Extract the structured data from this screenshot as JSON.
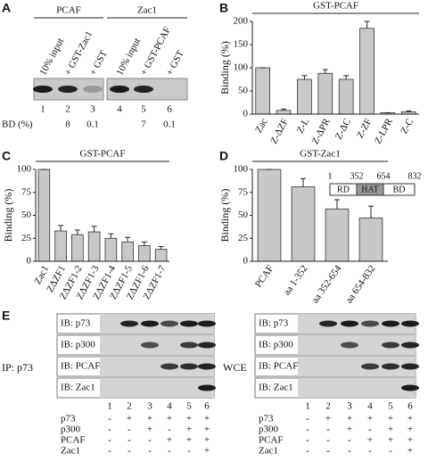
{
  "panel_labels": [
    "A",
    "B",
    "C",
    "D",
    "E"
  ],
  "panel_a": {
    "headers": [
      "PCAF",
      "Zac1"
    ],
    "lanes": [
      "10% input",
      "+ GST-Zac1",
      "+ GST",
      "10% input",
      "+ GST-PCAF",
      "+ GST"
    ],
    "lane_numbers": [
      "1",
      "2",
      "3",
      "4",
      "5",
      "6"
    ],
    "bd_label": "BD (%)",
    "bd_values": [
      "8",
      "0.1",
      "7",
      "0.1"
    ]
  },
  "chart_data": [
    {
      "type": "bar",
      "title": "GST-PCAF",
      "ylabel": "Binding (%)",
      "categories": [
        "Zac",
        "Z-ΔZF",
        "Z-L",
        "Z-ΔPR",
        "Z-ΔC",
        "Z-ZF",
        "Z-LPR",
        "Z-C"
      ],
      "values": [
        100,
        8,
        75,
        88,
        75,
        185,
        3,
        5
      ],
      "errors": [
        0,
        3,
        8,
        8,
        8,
        15,
        0,
        2
      ],
      "ylim": [
        0,
        200
      ],
      "yticks": [
        0,
        50,
        100,
        150,
        200
      ],
      "color": "#c8c8c8"
    },
    {
      "type": "bar",
      "title": "GST-PCAF",
      "ylabel": "Binding (%)",
      "categories": [
        "Zac1",
        "ZΔZF1",
        "ZΔZF1-2",
        "ZΔZF1-3",
        "ZΔZF1-4",
        "ZΔZF1-5",
        "ZΔZF1-6",
        "ZΔZF1-7"
      ],
      "values": [
        100,
        33,
        29,
        32,
        25,
        21,
        17,
        13
      ],
      "errors": [
        0,
        6,
        5,
        6,
        5,
        5,
        4,
        3
      ],
      "ylim": [
        0,
        100
      ],
      "yticks": [
        0,
        25,
        50,
        75,
        100
      ],
      "color": "#c8c8c8"
    },
    {
      "type": "bar",
      "title": "GST-Zac1",
      "ylabel": "Binding (%)",
      "categories": [
        "PCAF",
        "aa 1-352",
        "aa 352-654",
        "aa 654-832"
      ],
      "values": [
        100,
        81,
        57,
        47
      ],
      "errors": [
        0,
        9,
        10,
        13
      ],
      "ylim": [
        0,
        100
      ],
      "yticks": [
        0,
        25,
        50,
        75,
        100
      ],
      "color": "#c8c8c8",
      "domain_map": {
        "labels": [
          "RD",
          "HAT",
          "BD"
        ],
        "positions": [
          "1",
          "352",
          "654",
          "832"
        ]
      }
    }
  ],
  "panel_e": {
    "ip_label": "IP:  p73",
    "wce_label": "WCE",
    "blots": [
      "IB: p73",
      "IB: p300",
      "IB: PCAF",
      "IB: Zac1"
    ],
    "lane_numbers": [
      "1",
      "2",
      "3",
      "4",
      "5",
      "6"
    ],
    "conditions": [
      {
        "name": "p73",
        "signs": [
          "-",
          "+",
          "+",
          "+",
          "+",
          "+"
        ]
      },
      {
        "name": "p300",
        "signs": [
          "-",
          "-",
          "+",
          "-",
          "+",
          "+"
        ]
      },
      {
        "name": "PCAF",
        "signs": [
          "-",
          "-",
          "-",
          "+",
          "+",
          "+"
        ]
      },
      {
        "name": "Zac1",
        "signs": [
          "-",
          "-",
          "-",
          "-",
          "-",
          "+"
        ]
      }
    ]
  }
}
